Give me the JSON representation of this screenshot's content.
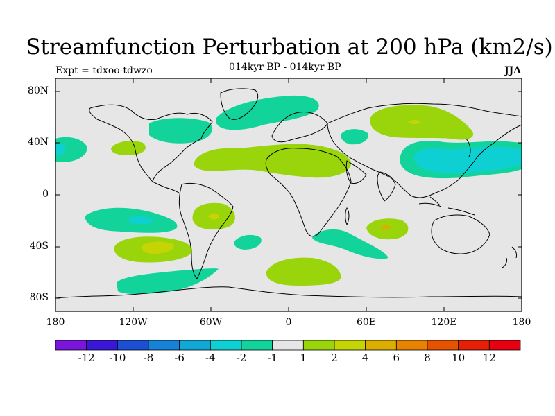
{
  "title": "Streamfunction Perturbation at 200 hPa (km2/s)",
  "subtitle": "014kyr BP - 014kyr BP",
  "left_label": "Expt = tdxoo-tdwzo",
  "right_label": "JJA",
  "lat_ticks": [
    "80N",
    "40N",
    "0",
    "40S",
    "80S"
  ],
  "lon_ticks": [
    "180",
    "120W",
    "60W",
    "0",
    "60E",
    "120E",
    "180"
  ],
  "colorbar": {
    "labels": [
      "-12",
      "-10",
      "-8",
      "-6",
      "-4",
      "-2",
      "-1",
      "1",
      "2",
      "4",
      "6",
      "8",
      "10",
      "12"
    ],
    "colors": [
      "#7a16dc",
      "#3a17d8",
      "#1d4fd4",
      "#1783d8",
      "#12a8d6",
      "#0ed0d2",
      "#12d49a",
      "#e6e6e6",
      "#9ad40a",
      "#c4d404",
      "#dcae02",
      "#e88302",
      "#e45202",
      "#e62006",
      "#e60010"
    ]
  },
  "colors": {
    "background": "#e6e6e6",
    "neg_1": "#12d49a",
    "neg_2": "#0ed0d2",
    "pos_1": "#9ad40a",
    "pos_2": "#c4d404",
    "pos_3": "#dcae02"
  }
}
